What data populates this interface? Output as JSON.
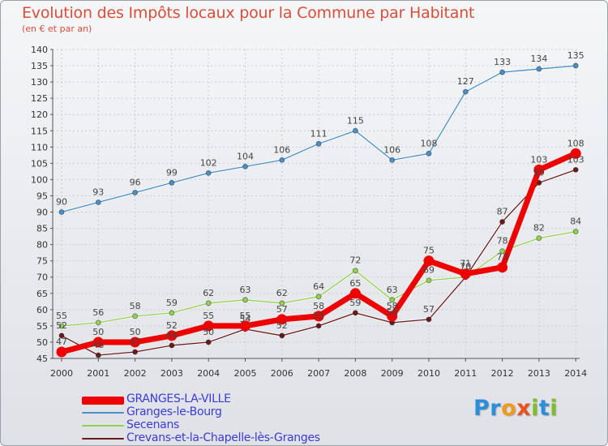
{
  "chart_data": {
    "type": "line",
    "title": "Evolution des Impôts locaux pour la Commune par Habitant",
    "subtitle": "(en € et par an)",
    "xlabel": "",
    "ylabel": "",
    "ylim": [
      45,
      140
    ],
    "y_ticks": [
      45,
      50,
      55,
      60,
      65,
      70,
      75,
      80,
      85,
      90,
      95,
      100,
      105,
      110,
      115,
      120,
      125,
      130,
      135,
      140
    ],
    "categories": [
      "2000",
      "2001",
      "2002",
      "2003",
      "2004",
      "2005",
      "2006",
      "2007",
      "2008",
      "2009",
      "2010",
      "2011",
      "2012",
      "2013",
      "2014"
    ],
    "series": [
      {
        "name": "GRANGES-LA-VILLE",
        "color": "#ee0000",
        "values": [
          47,
          50,
          50,
          52,
          55,
          55,
          57,
          58,
          65,
          58,
          75,
          71,
          73,
          103,
          108
        ]
      },
      {
        "name": "Granges-le-Bourg",
        "color": "#4a8fc7",
        "values": [
          90,
          93,
          96,
          99,
          102,
          104,
          106,
          111,
          115,
          106,
          108,
          127,
          133,
          134,
          135
        ]
      },
      {
        "name": "Secenans",
        "color": "#92d050",
        "values": [
          55,
          56,
          58,
          59,
          62,
          63,
          62,
          64,
          72,
          63,
          69,
          70,
          78,
          82,
          84
        ]
      },
      {
        "name": "Crevans-et-la-Chapelle-lès-Granges",
        "color": "#6b1a1a",
        "values": [
          52,
          46,
          47,
          49,
          50,
          54,
          52,
          55,
          59,
          56,
          57,
          70,
          87,
          99,
          103
        ]
      }
    ],
    "legend_position": "bottom-left"
  },
  "logo": {
    "letters": [
      "P",
      "r",
      "o",
      "x",
      "i",
      "t",
      "i"
    ],
    "colors": [
      "#2a8fd8",
      "#2a8fd8",
      "#f29a1c",
      "#e8521c",
      "#7cbf2a",
      "#2a8fd8",
      "#7cbf2a"
    ]
  }
}
